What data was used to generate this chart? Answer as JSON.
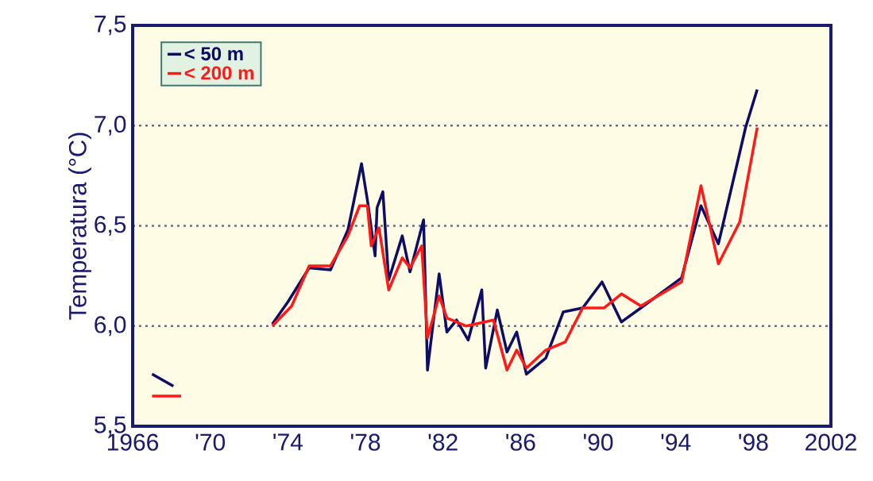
{
  "chart_data": {
    "type": "line",
    "ylabel": "Temperatura (°C)",
    "xlim": [
      1966,
      2002
    ],
    "ylim": [
      5.5,
      7.5
    ],
    "xticks": [
      1966,
      {
        "value": 1970,
        "label": "'70"
      },
      {
        "value": 1974,
        "label": "'74"
      },
      {
        "value": 1978,
        "label": "'78"
      },
      {
        "value": 1982,
        "label": "'82"
      },
      {
        "value": 1986,
        "label": "'86"
      },
      {
        "value": 1990,
        "label": "'90"
      },
      {
        "value": 1994,
        "label": "'94"
      },
      {
        "value": 1998,
        "label": "'98"
      },
      2002
    ],
    "yticks": [
      {
        "value": 5.5,
        "label": "5,5"
      },
      {
        "value": 6.0,
        "label": "6,0"
      },
      {
        "value": 6.5,
        "label": "6,5"
      },
      {
        "value": 7.0,
        "label": "7,0"
      },
      {
        "value": 7.5,
        "label": "7,5"
      }
    ],
    "grid": "y",
    "legend": "top left",
    "series": [
      {
        "name": "< 50 m",
        "color": "#0d0d66",
        "x": [
          1967.0,
          1968.1,
          1970.0,
          1973.2,
          1974.0,
          1975.1,
          1976.2,
          1977.1,
          1977.8,
          1978.1,
          1978.5,
          1978.6,
          1978.9,
          1979.2,
          1979.9,
          1980.3,
          1981.0,
          1981.2,
          1981.8,
          1982.2,
          1982.7,
          1983.3,
          1984.0,
          1984.2,
          1984.8,
          1985.3,
          1985.8,
          1986.3,
          1987.3,
          1988.2,
          1989.2,
          1990.2,
          1991.2,
          1992.2,
          1994.3,
          1995.3,
          1996.2,
          1997.6,
          1998.2
        ],
        "values": [
          5.76,
          5.7,
          null,
          6.01,
          6.12,
          6.29,
          6.28,
          6.48,
          6.81,
          6.63,
          6.35,
          6.59,
          6.67,
          6.23,
          6.45,
          6.27,
          6.53,
          5.78,
          6.26,
          5.97,
          6.03,
          5.93,
          6.18,
          5.79,
          6.08,
          5.87,
          5.97,
          5.76,
          5.84,
          6.07,
          6.09,
          6.22,
          6.02,
          6.09,
          6.24,
          6.6,
          6.41,
          6.99,
          7.18
        ]
      },
      {
        "name": "< 200 m",
        "color": "#ff1a1a",
        "x": [
          1967.0,
          1968.5,
          1970.0,
          1973.2,
          1974.2,
          1975.1,
          1976.2,
          1977.1,
          1977.7,
          1978.1,
          1978.3,
          1978.7,
          1979.2,
          1979.9,
          1980.3,
          1980.9,
          1981.2,
          1981.8,
          1982.2,
          1983.2,
          1984.6,
          1985.3,
          1985.8,
          1986.3,
          1987.3,
          1988.3,
          1989.2,
          1990.3,
          1991.2,
          1992.2,
          1994.3,
          1995.3,
          1996.2,
          1997.3,
          1998.2
        ],
        "values": [
          5.65,
          5.65,
          null,
          6.0,
          6.1,
          6.3,
          6.3,
          6.45,
          6.6,
          6.6,
          6.4,
          6.49,
          6.18,
          6.34,
          6.29,
          6.4,
          5.94,
          6.15,
          6.04,
          6.0,
          6.03,
          5.78,
          5.88,
          5.79,
          5.88,
          5.92,
          6.09,
          6.09,
          6.16,
          6.1,
          6.22,
          6.7,
          6.31,
          6.52,
          6.99
        ]
      }
    ]
  }
}
